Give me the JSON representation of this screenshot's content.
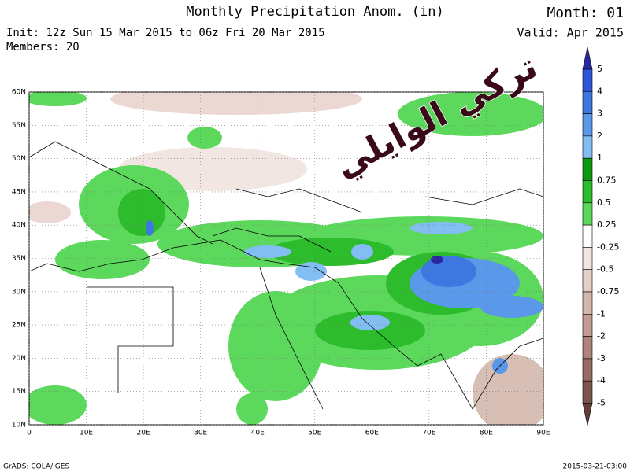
{
  "header": {
    "title": "Monthly Precipitation Anom. (in)",
    "init": "Init: 12z Sun 15 Mar 2015 to 06z Fri 20 Mar 2015",
    "members": "Members: 20",
    "month": "Month: 01",
    "valid": "Valid: Apr 2015"
  },
  "watermark": "تركي الوايلي",
  "map": {
    "lat_labels": [
      "60N",
      "55N",
      "50N",
      "45N",
      "40N",
      "35N",
      "30N",
      "25N",
      "20N",
      "15N",
      "10N"
    ],
    "lon_labels": [
      "0",
      "10E",
      "20E",
      "30E",
      "40E",
      "50E",
      "60E",
      "70E",
      "80E",
      "90E"
    ]
  },
  "colorbar": {
    "labels": [
      5,
      4,
      3,
      2,
      1,
      0.75,
      0.5,
      0.25,
      -0.25,
      -0.5,
      -0.75,
      -1,
      -2,
      -3,
      -4,
      -5
    ],
    "colors": [
      "#2828a0",
      "#2f55d6",
      "#3c78e0",
      "#5a98ea",
      "#82bef2",
      "#0e9a0e",
      "#2cbc2c",
      "#5cd85c",
      "#ffffff",
      "#f2e4e0",
      "#e4cec6",
      "#d4b6ac",
      "#c29c92",
      "#ac847a",
      "#946c62",
      "#7c564c",
      "#643e36"
    ]
  },
  "footer": {
    "left": "GrADS: COLA/IGES",
    "right": "2015-03-21-03:00"
  }
}
